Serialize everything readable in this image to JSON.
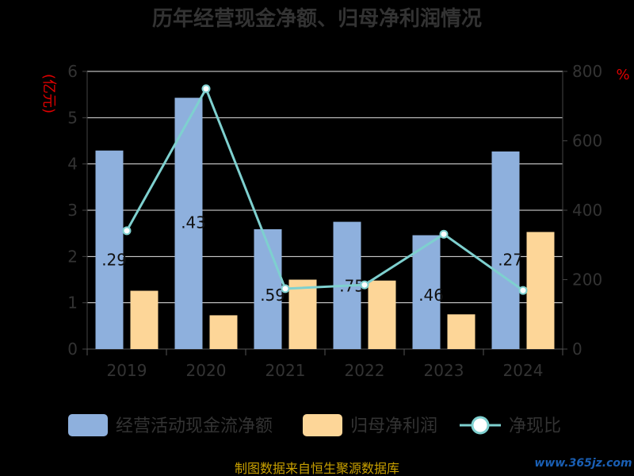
{
  "chart_data": {
    "type": "bar",
    "title": "历年经营现金净额、归母净利润情况",
    "categories": [
      "2019",
      "2020",
      "2021",
      "2022",
      "2023",
      "2024"
    ],
    "y_left": {
      "unit": "(亿元)",
      "ylim": [
        0,
        6
      ],
      "ticks": [
        0,
        1,
        2,
        3,
        4,
        5,
        6
      ]
    },
    "y_right": {
      "unit": "%",
      "ylim": [
        0,
        800
      ],
      "ticks": [
        0,
        200,
        400,
        600,
        800
      ]
    },
    "series": [
      {
        "name": "经营活动现金流净额",
        "type": "bar",
        "axis": "left",
        "color": "#8eb0dd",
        "values": [
          4.29,
          5.43,
          2.59,
          2.75,
          2.46,
          4.27
        ]
      },
      {
        "name": "归母净利润",
        "type": "bar",
        "axis": "left",
        "color": "#fdd698",
        "values": [
          1.26,
          0.73,
          1.5,
          1.48,
          0.75,
          2.53
        ]
      },
      {
        "name": "净现比",
        "type": "line",
        "axis": "right",
        "color": "#7ed0cf",
        "values": [
          341,
          750,
          174,
          185,
          331,
          169
        ]
      }
    ],
    "data_labels": [
      ".29",
      ".43",
      ".59",
      ".75",
      ".46",
      ".27"
    ],
    "grid": true,
    "legend": "bottom"
  },
  "footer": {
    "source": "制图数据来自恒生聚源数据库",
    "watermark": "www.365jz.com"
  }
}
